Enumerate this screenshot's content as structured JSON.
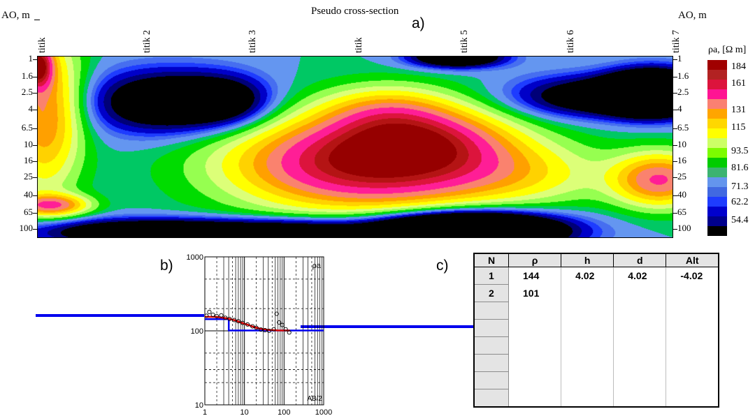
{
  "chart_data": [
    {
      "type": "heatmap",
      "title": "Pseudo cross-section",
      "ylabel_left": "AO, m",
      "ylabel_right": "AO, m",
      "stations": [
        "titik",
        "titik 2",
        "titik 3",
        "titik",
        "titik 5",
        "titik 6",
        "titik 7"
      ],
      "depths": [
        "1",
        "1.6",
        "2.5",
        "4",
        "6.5",
        "10",
        "16",
        "25",
        "40",
        "65",
        "100"
      ],
      "legend_title": "ρa, [Ω m]",
      "legend_values": [
        "184",
        "161",
        "131",
        "115",
        "93.5",
        "81.6",
        "71.3",
        "62.2",
        "54.4"
      ],
      "color_scale": [
        "#000000",
        "#00008b",
        "#0000cd",
        "#1e3cff",
        "#4169e1",
        "#6495ed",
        "#3cb371",
        "#00cc00",
        "#7cfc00",
        "#ccff66",
        "#ffff00",
        "#ffd700",
        "#ffa500",
        "#fa8072",
        "#ff1493",
        "#dc143c",
        "#b22222",
        "#a00000"
      ]
    },
    {
      "type": "line",
      "x_scale": "log",
      "y_scale": "log",
      "xlim": [
        1,
        1000
      ],
      "ylim": [
        10,
        1000
      ],
      "x_ticks": [
        "1",
        "10",
        "100",
        "1000"
      ],
      "y_ticks": [
        "1000",
        "100",
        "10"
      ],
      "xlabel": "AB/2",
      "ylabel": "ρa",
      "series": [
        {
          "role": "observed",
          "points": [
            [
              1.1,
              160
            ],
            [
              1.3,
              180
            ],
            [
              1.6,
              165
            ],
            [
              2.0,
              158
            ],
            [
              2.6,
              162
            ],
            [
              3.3,
              150
            ],
            [
              4.2,
              145
            ],
            [
              5.5,
              140
            ],
            [
              7,
              135
            ],
            [
              9,
              128
            ],
            [
              12,
              122
            ],
            [
              16,
              115
            ],
            [
              20,
              110
            ],
            [
              26,
              104
            ],
            [
              33,
              102
            ],
            [
              42,
              100
            ],
            [
              55,
              105
            ],
            [
              65,
              170
            ],
            [
              75,
              130
            ],
            [
              90,
              120
            ],
            [
              110,
              105
            ],
            [
              135,
              95
            ]
          ]
        },
        {
          "role": "calculated",
          "points": [
            [
              1,
              155
            ],
            [
              2,
              154
            ],
            [
              3,
              150
            ],
            [
              4,
              146
            ],
            [
              6,
              138
            ],
            [
              8,
              130
            ],
            [
              12,
              121
            ],
            [
              18,
              112
            ],
            [
              25,
              107
            ],
            [
              40,
              103
            ],
            [
              70,
              101.5
            ],
            [
              140,
              101
            ]
          ]
        },
        {
          "role": "model",
          "points": [
            [
              1,
              144
            ],
            [
              4.02,
              144
            ],
            [
              4.02,
              101
            ],
            [
              1000,
              101
            ]
          ]
        }
      ]
    }
  ],
  "panel_labels": {
    "a": "a)",
    "b": "b)",
    "c": "c)"
  },
  "layer_table": {
    "headers": [
      "N",
      "ρ",
      "h",
      "d",
      "Alt"
    ],
    "rows": [
      [
        "1",
        "144",
        "4.02",
        "4.02",
        "-4.02"
      ],
      [
        "2",
        "101",
        "",
        "",
        ""
      ],
      [
        "",
        "",
        "",
        "",
        ""
      ],
      [
        "",
        "",
        "",
        "",
        ""
      ],
      [
        "",
        "",
        "",
        "",
        ""
      ],
      [
        "",
        "",
        "",
        "",
        ""
      ],
      [
        "",
        "",
        "",
        "",
        ""
      ],
      [
        "",
        "",
        "",
        "",
        ""
      ]
    ]
  }
}
